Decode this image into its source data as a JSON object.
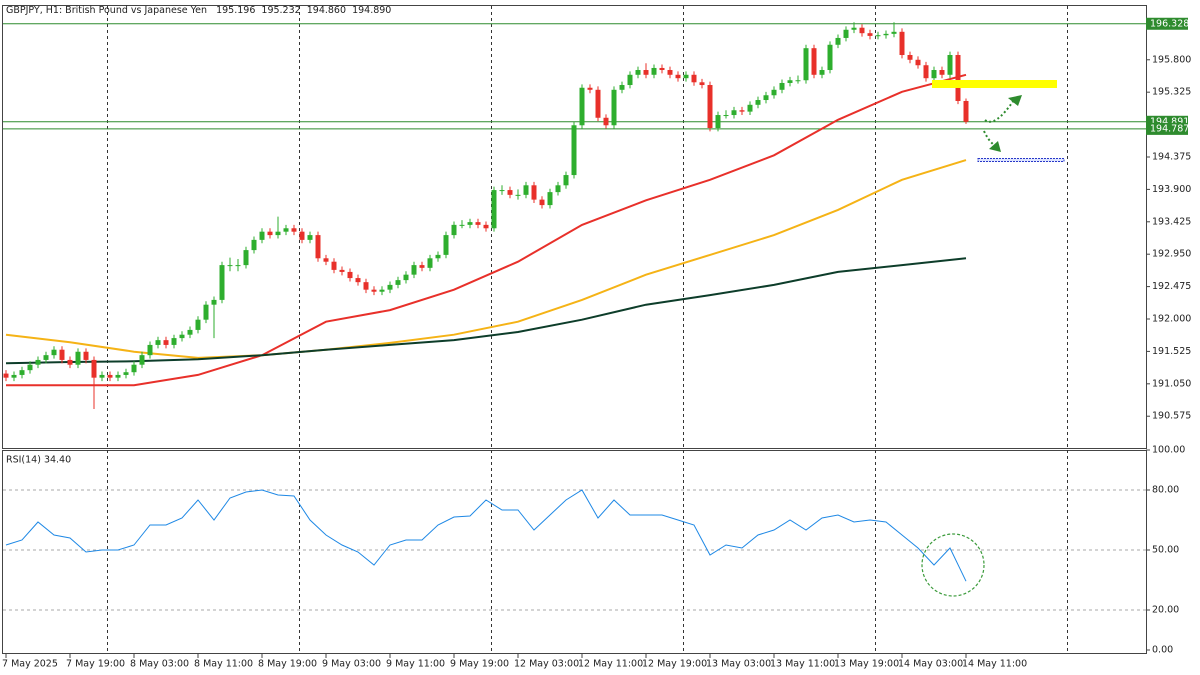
{
  "chart_data": [
    {
      "type": "candlestick",
      "title": "GBPJPY, H1:  British Pound vs Japanese Yen",
      "header_values": [
        "195.196",
        "195.232",
        "194.860",
        "194.890"
      ],
      "up_color": "#2eae2e",
      "down_color": "#e8302a",
      "xlim": [
        -0.75,
        142.5
      ],
      "ylim": [
        190.109,
        196.603
      ],
      "yticks": [
        {
          "value": 195.8,
          "label": "195.800"
        },
        {
          "value": 195.325,
          "label": "195.325"
        },
        {
          "value": 194.375,
          "label": "194.375"
        },
        {
          "value": 193.9,
          "label": "193.900"
        },
        {
          "value": 193.425,
          "label": "193.425"
        },
        {
          "value": 192.95,
          "label": "192.950"
        },
        {
          "value": 192.475,
          "label": "192.475"
        },
        {
          "value": 192.0,
          "label": "192.000"
        },
        {
          "value": 191.525,
          "label": "191.525"
        },
        {
          "value": 191.05,
          "label": "191.050"
        },
        {
          "value": 190.575,
          "label": "190.575"
        }
      ],
      "xticks": [
        {
          "value": 0,
          "label": "7 May 2025"
        },
        {
          "value": 8,
          "label": "7 May 19:00"
        },
        {
          "value": 16,
          "label": "8 May 03:00"
        },
        {
          "value": 24,
          "label": "8 May 11:00"
        },
        {
          "value": 32,
          "label": "8 May 19:00"
        },
        {
          "value": 40,
          "label": "9 May 03:00"
        },
        {
          "value": 48,
          "label": "9 May 11:00"
        },
        {
          "value": 56,
          "label": "9 May 19:00"
        },
        {
          "value": 64,
          "label": "12 May 03:00"
        },
        {
          "value": 72,
          "label": "12 May 11:00"
        },
        {
          "value": 80,
          "label": "12 May 19:00"
        },
        {
          "value": 88,
          "label": "13 May 03:00"
        },
        {
          "value": 96,
          "label": "13 May 11:00"
        },
        {
          "value": 104,
          "label": "13 May 19:00"
        },
        {
          "value": 112,
          "label": "14 May 03:00"
        },
        {
          "value": 120,
          "label": "14 May 11:00"
        }
      ],
      "levels": [
        196.328,
        194.891,
        194.787
      ],
      "level_color": "#2e8b2e",
      "ohlc": [
        [
          191.2,
          191.25,
          191.09,
          191.14
        ],
        [
          191.14,
          191.23,
          191.09,
          191.18
        ],
        [
          191.18,
          191.3,
          191.13,
          191.25
        ],
        [
          191.25,
          191.38,
          191.2,
          191.33
        ],
        [
          191.33,
          191.45,
          191.28,
          191.4
        ],
        [
          191.4,
          191.52,
          191.35,
          191.47
        ],
        [
          191.47,
          191.6,
          191.42,
          191.55
        ],
        [
          191.55,
          191.6,
          191.35,
          191.4
        ],
        [
          191.4,
          191.45,
          191.28,
          191.33
        ],
        [
          191.33,
          191.57,
          191.28,
          191.52
        ],
        [
          191.52,
          191.57,
          191.35,
          191.4
        ],
        [
          191.4,
          191.45,
          190.68,
          191.14
        ],
        [
          191.14,
          191.23,
          191.09,
          191.18
        ],
        [
          191.18,
          191.23,
          191.09,
          191.14
        ],
        [
          191.14,
          191.23,
          191.09,
          191.18
        ],
        [
          191.18,
          191.27,
          191.13,
          191.22
        ],
        [
          191.22,
          191.38,
          191.17,
          191.33
        ],
        [
          191.33,
          191.52,
          191.28,
          191.47
        ],
        [
          191.47,
          191.67,
          191.42,
          191.62
        ],
        [
          191.62,
          191.74,
          191.57,
          191.69
        ],
        [
          191.69,
          191.74,
          191.57,
          191.62
        ],
        [
          191.62,
          191.77,
          191.57,
          191.72
        ],
        [
          191.72,
          191.82,
          191.67,
          191.77
        ],
        [
          191.77,
          191.89,
          191.72,
          191.84
        ],
        [
          191.84,
          192.04,
          191.79,
          191.99
        ],
        [
          191.99,
          192.26,
          191.94,
          192.21
        ],
        [
          192.21,
          192.33,
          191.72,
          192.28
        ],
        [
          192.28,
          192.84,
          192.23,
          192.79
        ],
        [
          192.79,
          192.9,
          192.7,
          192.79
        ],
        [
          192.79,
          192.88,
          192.7,
          192.79
        ],
        [
          192.79,
          193.06,
          192.74,
          193.01
        ],
        [
          193.01,
          193.21,
          192.96,
          193.16
        ],
        [
          193.16,
          193.33,
          193.11,
          193.28
        ],
        [
          193.28,
          193.33,
          193.18,
          193.23
        ],
        [
          193.23,
          193.5,
          193.18,
          193.28
        ],
        [
          193.28,
          193.38,
          193.23,
          193.33
        ],
        [
          193.33,
          193.38,
          193.23,
          193.28
        ],
        [
          193.28,
          193.33,
          193.11,
          193.16
        ],
        [
          193.16,
          193.28,
          193.11,
          193.23
        ],
        [
          193.23,
          193.28,
          192.84,
          192.89
        ],
        [
          192.89,
          192.94,
          192.79,
          192.84
        ],
        [
          192.84,
          192.89,
          192.67,
          192.72
        ],
        [
          192.72,
          192.77,
          192.64,
          192.69
        ],
        [
          192.69,
          192.74,
          192.55,
          192.6
        ],
        [
          192.6,
          192.65,
          192.49,
          192.54
        ],
        [
          192.54,
          192.59,
          192.38,
          192.43
        ],
        [
          192.43,
          192.48,
          192.35,
          192.4
        ],
        [
          192.4,
          192.48,
          192.35,
          192.43
        ],
        [
          192.43,
          192.55,
          192.38,
          192.5
        ],
        [
          192.5,
          192.62,
          192.45,
          192.57
        ],
        [
          192.57,
          192.7,
          192.52,
          192.65
        ],
        [
          192.65,
          192.84,
          192.6,
          192.79
        ],
        [
          192.79,
          192.84,
          192.7,
          192.75
        ],
        [
          192.75,
          192.94,
          192.7,
          192.89
        ],
        [
          192.89,
          192.99,
          192.84,
          192.94
        ],
        [
          192.94,
          193.28,
          192.89,
          193.23
        ],
        [
          193.23,
          193.43,
          193.18,
          193.38
        ],
        [
          193.38,
          193.45,
          193.33,
          193.38
        ],
        [
          193.38,
          193.47,
          193.33,
          193.42
        ],
        [
          193.42,
          193.47,
          193.33,
          193.38
        ],
        [
          193.38,
          193.43,
          193.28,
          193.33
        ],
        [
          193.33,
          193.94,
          193.28,
          193.89
        ],
        [
          193.89,
          193.96,
          193.82,
          193.89
        ],
        [
          193.89,
          193.94,
          193.77,
          193.82
        ],
        [
          193.82,
          193.9,
          193.75,
          193.82
        ],
        [
          193.82,
          194.01,
          193.77,
          193.96
        ],
        [
          193.96,
          194.01,
          193.7,
          193.75
        ],
        [
          193.75,
          193.8,
          193.62,
          193.67
        ],
        [
          193.67,
          193.91,
          193.62,
          193.86
        ],
        [
          193.86,
          194.01,
          193.81,
          193.96
        ],
        [
          193.96,
          194.16,
          193.91,
          194.11
        ],
        [
          194.11,
          194.89,
          194.06,
          194.84
        ],
        [
          194.84,
          195.44,
          194.79,
          195.39
        ],
        [
          195.39,
          195.44,
          195.31,
          195.36
        ],
        [
          195.36,
          195.41,
          194.9,
          194.95
        ],
        [
          194.95,
          195.0,
          194.79,
          194.84
        ],
        [
          194.84,
          195.41,
          194.79,
          195.36
        ],
        [
          195.36,
          195.48,
          195.31,
          195.43
        ],
        [
          195.43,
          195.63,
          195.38,
          195.58
        ],
        [
          195.58,
          195.7,
          195.53,
          195.65
        ],
        [
          195.65,
          195.75,
          195.53,
          195.58
        ],
        [
          195.58,
          195.73,
          195.53,
          195.68
        ],
        [
          195.68,
          195.73,
          195.6,
          195.65
        ],
        [
          195.65,
          195.7,
          195.53,
          195.58
        ],
        [
          195.58,
          195.63,
          195.48,
          195.53
        ],
        [
          195.53,
          195.63,
          195.48,
          195.58
        ],
        [
          195.58,
          195.63,
          195.42,
          195.47
        ],
        [
          195.47,
          195.52,
          195.38,
          195.43
        ],
        [
          195.43,
          195.48,
          194.75,
          194.8
        ],
        [
          194.8,
          195.04,
          194.75,
          194.99
        ],
        [
          194.99,
          195.06,
          194.94,
          194.99
        ],
        [
          194.99,
          195.11,
          194.94,
          195.06
        ],
        [
          195.06,
          195.11,
          194.99,
          195.04
        ],
        [
          195.04,
          195.19,
          194.99,
          195.14
        ],
        [
          195.14,
          195.26,
          195.09,
          195.21
        ],
        [
          195.21,
          195.33,
          195.16,
          195.28
        ],
        [
          195.28,
          195.41,
          195.23,
          195.36
        ],
        [
          195.36,
          195.51,
          195.31,
          195.46
        ],
        [
          195.46,
          195.55,
          195.41,
          195.5
        ],
        [
          195.5,
          195.57,
          195.45,
          195.5
        ],
        [
          195.5,
          196.02,
          195.45,
          195.97
        ],
        [
          195.97,
          196.02,
          195.53,
          195.58
        ],
        [
          195.58,
          195.7,
          195.53,
          195.65
        ],
        [
          195.65,
          196.07,
          195.6,
          196.02
        ],
        [
          196.02,
          196.17,
          195.97,
          196.12
        ],
        [
          196.12,
          196.29,
          196.07,
          196.24
        ],
        [
          196.24,
          196.35,
          196.19,
          196.27
        ],
        [
          196.27,
          196.32,
          196.14,
          196.19
        ],
        [
          196.19,
          196.24,
          196.1,
          196.15
        ],
        [
          196.15,
          196.21,
          196.1,
          196.16
        ],
        [
          196.16,
          196.23,
          196.11,
          196.18
        ],
        [
          196.18,
          196.35,
          196.13,
          196.21
        ],
        [
          196.21,
          196.26,
          195.82,
          195.87
        ],
        [
          195.87,
          195.92,
          195.75,
          195.8
        ],
        [
          195.8,
          195.85,
          195.67,
          195.72
        ],
        [
          195.72,
          195.77,
          195.48,
          195.53
        ],
        [
          195.53,
          195.7,
          195.48,
          195.65
        ],
        [
          195.65,
          195.7,
          195.53,
          195.58
        ],
        [
          195.58,
          195.92,
          195.53,
          195.87
        ],
        [
          195.87,
          195.92,
          195.15,
          195.196
        ],
        [
          195.196,
          195.232,
          194.86,
          194.89
        ]
      ],
      "series": [
        {
          "color": "#e8302a",
          "x": [
            0,
            8,
            16,
            24,
            32,
            40,
            48,
            56,
            64,
            72,
            80,
            88,
            96,
            104,
            112,
            120
          ],
          "values": [
            191.03,
            191.03,
            191.03,
            191.18,
            191.47,
            191.96,
            192.13,
            192.43,
            192.84,
            193.38,
            193.74,
            194.04,
            194.4,
            194.92,
            195.33,
            195.58
          ]
        },
        {
          "color": "#f5b316",
          "x": [
            0,
            8,
            16,
            24,
            32,
            40,
            48,
            56,
            64,
            72,
            80,
            88,
            96,
            104,
            112,
            120
          ],
          "values": [
            191.77,
            191.66,
            191.52,
            191.43,
            191.47,
            191.55,
            191.65,
            191.77,
            191.96,
            192.28,
            192.65,
            192.94,
            193.23,
            193.6,
            194.04,
            194.33
          ]
        },
        {
          "color": "#0d3d2a",
          "x": [
            0,
            8,
            16,
            24,
            32,
            40,
            48,
            56,
            64,
            72,
            80,
            88,
            96,
            104,
            112,
            120
          ],
          "values": [
            191.35,
            191.37,
            191.38,
            191.41,
            191.47,
            191.55,
            191.62,
            191.69,
            191.81,
            191.99,
            192.21,
            192.35,
            192.5,
            192.69,
            192.79,
            192.89
          ]
        }
      ]
    },
    {
      "type": "line",
      "title": "RSI(14) 34.40",
      "xlim": [
        -0.75,
        142.5
      ],
      "ylim": [
        0,
        100
      ],
      "yticks": [
        {
          "value": 100,
          "label": "100.00"
        },
        {
          "value": 80,
          "label": "80.00"
        },
        {
          "value": 50,
          "label": "50.00"
        },
        {
          "value": 20,
          "label": "20.00"
        },
        {
          "value": 0,
          "label": "0.00"
        }
      ],
      "grid": true,
      "series": [
        {
          "color": "#1e88e5",
          "x": [
            0,
            2,
            4,
            6,
            8,
            10,
            12,
            14,
            16,
            18,
            20,
            22,
            24,
            26,
            28,
            30,
            32,
            34,
            36,
            38,
            40,
            42,
            44,
            46,
            48,
            50,
            52,
            54,
            56,
            58,
            60,
            62,
            64,
            66,
            68,
            70,
            72,
            74,
            76,
            78,
            80,
            82,
            84,
            86,
            88,
            90,
            92,
            94,
            96,
            98,
            100,
            102,
            104,
            106,
            108,
            110,
            112,
            114,
            116,
            118,
            120
          ],
          "values": [
            52.5,
            55,
            64,
            57.5,
            56,
            49,
            50,
            50,
            52.5,
            62.5,
            62.5,
            66,
            75,
            65,
            76,
            79,
            80,
            77.5,
            77,
            65,
            57.5,
            52.5,
            49,
            42.5,
            52.5,
            55,
            55,
            62.5,
            66.5,
            67,
            75,
            70,
            70,
            60,
            67.5,
            75,
            80,
            66,
            75,
            67.5,
            67.5,
            67.5,
            65,
            62.5,
            47.5,
            52.5,
            51,
            57.5,
            60,
            65,
            60,
            66,
            67.5,
            64,
            65,
            64,
            57.5,
            51,
            42.5,
            51,
            34.4
          ]
        }
      ]
    }
  ]
}
